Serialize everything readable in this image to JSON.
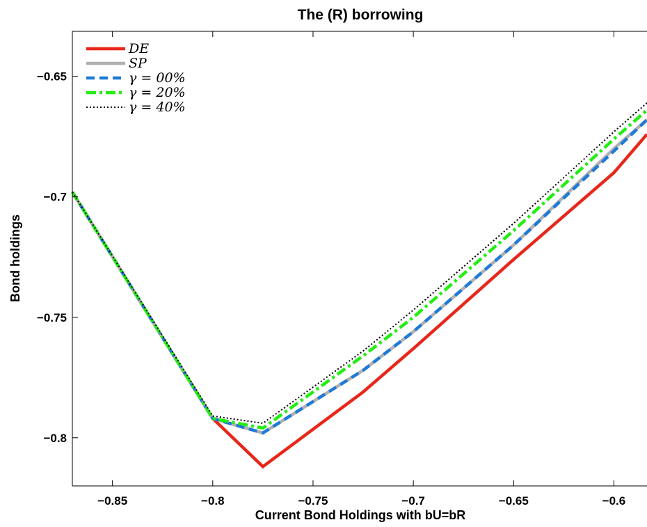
{
  "chart_data": {
    "type": "line",
    "title": "The (R) borrowing",
    "xlabel": "Current Bond Holdings with bU=bR",
    "ylabel": "Bond holdings",
    "xlim": [
      -0.87,
      -0.5835
    ],
    "ylim": [
      -0.82,
      -0.6313
    ],
    "xticks": [
      -0.85,
      -0.8,
      -0.75,
      -0.7,
      -0.65,
      -0.6
    ],
    "xtick_labels": [
      "−0.85",
      "−0.8",
      "−0.75",
      "−0.7",
      "−0.65",
      "−0.6"
    ],
    "yticks": [
      -0.65,
      -0.7,
      -0.75,
      -0.8
    ],
    "ytick_labels": [
      "−0.65",
      "−0.7",
      "−0.75",
      "−0.8"
    ],
    "grid": false,
    "legend_position": "top-left",
    "series": [
      {
        "name": "DE",
        "color": "#e8261a",
        "style": "solid",
        "x": [
          -0.87,
          -0.8,
          -0.775,
          -0.725,
          -0.7,
          -0.65,
          -0.6,
          -0.5835
        ],
        "y": [
          -0.698,
          -0.792,
          -0.812,
          -0.781,
          -0.763,
          -0.726,
          -0.69,
          -0.674
        ]
      },
      {
        "name": "SP",
        "color": "#b0b0b0",
        "style": "solid",
        "x": [
          -0.87,
          -0.8,
          -0.775,
          -0.725,
          -0.7,
          -0.65,
          -0.6,
          -0.5835
        ],
        "y": [
          -0.698,
          -0.792,
          -0.798,
          -0.772,
          -0.756,
          -0.72,
          -0.68,
          -0.668
        ]
      },
      {
        "name": "γ = 00%",
        "color": "#1f7ad8",
        "style": "dashed",
        "x": [
          -0.87,
          -0.8,
          -0.775,
          -0.725,
          -0.7,
          -0.65,
          -0.6,
          -0.5835
        ],
        "y": [
          -0.698,
          -0.792,
          -0.798,
          -0.772,
          -0.756,
          -0.72,
          -0.681,
          -0.668
        ]
      },
      {
        "name": "γ = 20%",
        "color": "#22ee11",
        "style": "dashdot",
        "x": [
          -0.87,
          -0.8,
          -0.775,
          -0.725,
          -0.7,
          -0.65,
          -0.6,
          -0.5835
        ],
        "y": [
          -0.698,
          -0.792,
          -0.796,
          -0.766,
          -0.75,
          -0.714,
          -0.676,
          -0.664
        ]
      },
      {
        "name": "γ = 40%",
        "color": "#000000",
        "style": "dotted",
        "x": [
          -0.87,
          -0.8,
          -0.775,
          -0.725,
          -0.7,
          -0.65,
          -0.6,
          -0.5835
        ],
        "y": [
          -0.698,
          -0.791,
          -0.794,
          -0.764,
          -0.747,
          -0.711,
          -0.673,
          -0.661
        ]
      }
    ],
    "legend_labels": [
      "DE",
      "SP",
      "γ = 00%",
      "γ = 20%",
      "γ = 40%"
    ]
  }
}
